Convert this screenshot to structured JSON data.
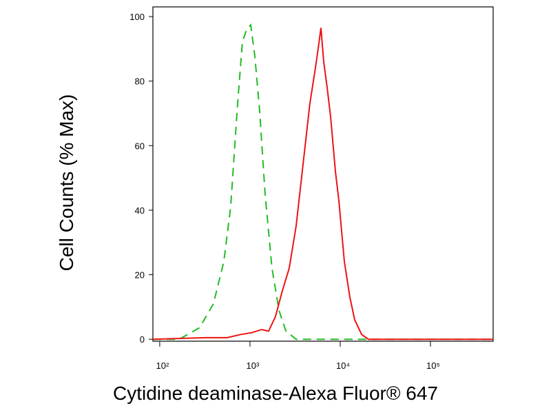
{
  "chart_data": {
    "type": "line",
    "x_label": "Cytidine deaminase-Alexa Fluor® 647",
    "y_label": "Cell Counts (% Max)",
    "xscale": "log",
    "xlim": [
      84,
      495000
    ],
    "ylim": [
      -0.6,
      103
    ],
    "xticks": [
      {
        "value": 100,
        "label": "10²"
      },
      {
        "value": 1000,
        "label": "10³"
      },
      {
        "value": 10000,
        "label": "10⁴"
      },
      {
        "value": 100000,
        "label": "10⁵"
      }
    ],
    "yticks": [
      0,
      20,
      40,
      60,
      80,
      100
    ],
    "series": [
      {
        "color": "#22bb22",
        "linestyle": "dashed",
        "x": [
          84,
          164,
          277,
          394,
          512,
          611,
          729,
          824,
          916,
          1018,
          1130,
          1279,
          1472,
          1754,
          2094,
          2495,
          3246,
          11120,
          64400,
          495000
        ],
        "values": [
          0,
          0,
          3.6,
          11,
          24,
          41,
          73,
          92,
          96,
          97.4,
          88,
          71,
          45,
          22,
          9,
          2.6,
          0,
          0,
          0,
          0
        ]
      },
      {
        "color": "#ee1111",
        "linestyle": "solid",
        "x": [
          84,
          330,
          560,
          796,
          1035,
          1349,
          1607,
          1916,
          2284,
          2722,
          3246,
          3870,
          4613,
          5308,
          5696,
          6113,
          6560,
          7161,
          7818,
          8844,
          9655,
          11120,
          12800,
          14460,
          17250,
          20560,
          495000
        ],
        "values": [
          0,
          0.5,
          0.5,
          1.5,
          2,
          3,
          2.5,
          7,
          15,
          22,
          35,
          54,
          73,
          84,
          90,
          96.5,
          86,
          78,
          69,
          52,
          43,
          24,
          13,
          6,
          1.5,
          0,
          0
        ]
      }
    ]
  }
}
